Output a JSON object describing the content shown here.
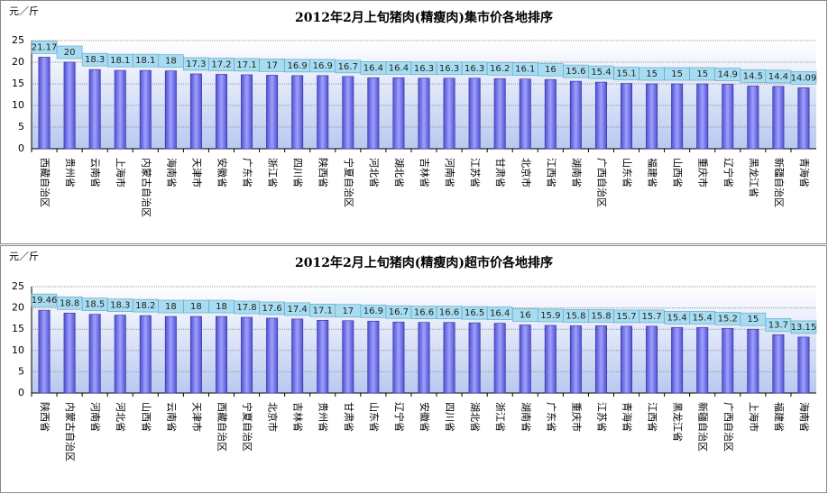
{
  "chart_data": [
    {
      "type": "bar",
      "title": "2012年2月上旬猪肉(精瘦肉)集市价各地排序",
      "y_label": "元／斤",
      "categories": [
        "西藏自治区",
        "贵州省",
        "云南省",
        "上海市",
        "内蒙古自治区",
        "海南省",
        "天津市",
        "安徽省",
        "广东省",
        "浙江省",
        "四川省",
        "陕西省",
        "宁夏自治区",
        "河北省",
        "湖北省",
        "吉林省",
        "河南省",
        "江苏省",
        "甘肃省",
        "北京市",
        "江西省",
        "湖南省",
        "广西自治区",
        "山东省",
        "福建省",
        "山西省",
        "重庆市",
        "辽宁省",
        "黑龙江省",
        "新疆自治区",
        "青海省"
      ],
      "values": [
        21.17,
        20.0,
        18.3,
        18.1,
        18.1,
        18.0,
        17.3,
        17.2,
        17.1,
        17.0,
        16.9,
        16.9,
        16.7,
        16.4,
        16.4,
        16.3,
        16.3,
        16.3,
        16.2,
        16.1,
        16.0,
        15.6,
        15.4,
        15.1,
        15.0,
        15.0,
        15.0,
        14.9,
        14.5,
        14.4,
        14.09
      ],
      "color": "#8080ff",
      "ylim": [
        0,
        25
      ],
      "yticks": [
        0,
        5,
        10,
        15,
        20,
        25
      ],
      "grid": true
    },
    {
      "type": "bar",
      "title": "2012年2月上旬猪肉(精瘦肉)超市价各地排序",
      "y_label": "元／斤",
      "categories": [
        "陕西省",
        "内蒙古自治区",
        "河南省",
        "河北省",
        "山西省",
        "云南省",
        "天津市",
        "西藏自治区",
        "宁夏自治区",
        "北京市",
        "吉林省",
        "贵州省",
        "甘肃省",
        "山东省",
        "辽宁省",
        "安徽省",
        "四川省",
        "湖北省",
        "浙江省",
        "湖南省",
        "广东省",
        "重庆市",
        "江苏省",
        "青海省",
        "江西省",
        "黑龙江省",
        "新疆自治区",
        "广西自治区",
        "上海市",
        "福建省",
        "海南省"
      ],
      "values": [
        19.46,
        18.8,
        18.5,
        18.3,
        18.2,
        18.0,
        18.0,
        18.0,
        17.8,
        17.6,
        17.4,
        17.1,
        17.0,
        16.9,
        16.7,
        16.6,
        16.6,
        16.5,
        16.4,
        16.0,
        15.9,
        15.8,
        15.8,
        15.7,
        15.7,
        15.4,
        15.4,
        15.2,
        15.0,
        13.7,
        13.15
      ],
      "color": "#8080ff",
      "ylim": [
        0,
        25
      ],
      "yticks": [
        0,
        5,
        10,
        15,
        20,
        25
      ],
      "grid": true
    }
  ]
}
